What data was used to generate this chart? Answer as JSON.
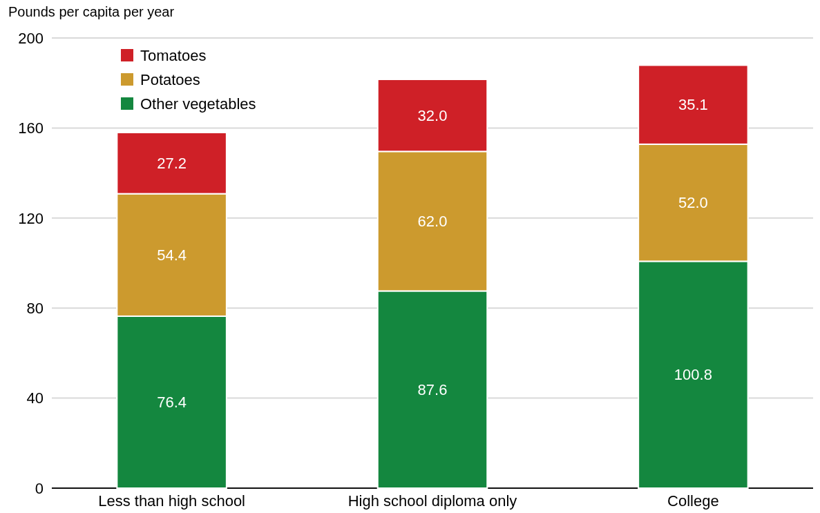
{
  "chart_data": {
    "type": "bar",
    "stacked": true,
    "ylabel": "Pounds per capita per year",
    "categories": [
      "Less than high school",
      "High school diploma only",
      "College"
    ],
    "series": [
      {
        "name": "Other vegetables",
        "color": "#14873f",
        "values": [
          76.4,
          87.6,
          100.8
        ]
      },
      {
        "name": "Potatoes",
        "color": "#cc9a2e",
        "values": [
          54.4,
          62.0,
          52.0
        ]
      },
      {
        "name": "Tomatoes",
        "color": "#cf2027",
        "values": [
          27.2,
          32.0,
          35.1
        ]
      }
    ],
    "value_labels": [
      [
        "76.4",
        "87.6",
        "100.8"
      ],
      [
        "54.4",
        "62.0",
        "52.0"
      ],
      [
        "27.2",
        "32.0",
        "35.1"
      ]
    ],
    "ylim": [
      0,
      200
    ],
    "yticks": [
      0,
      40,
      80,
      120,
      160,
      200
    ],
    "grid": "y",
    "legend": "top left"
  }
}
